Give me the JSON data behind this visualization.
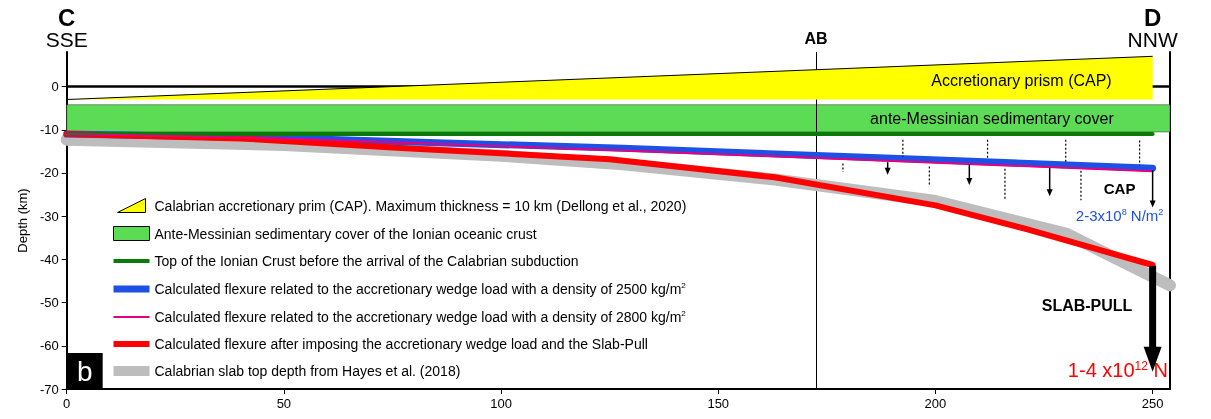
{
  "chart_data": {
    "type": "line",
    "ylabel": "Depth (km)",
    "xlim": [
      0,
      254
    ],
    "xticks": [
      0,
      50,
      100,
      150,
      200,
      250
    ],
    "ylim": [
      -70,
      8
    ],
    "yticks": [
      -70,
      -60,
      -50,
      -40,
      -30,
      -20,
      -10,
      0
    ],
    "tick_labels": "xy",
    "grid": false,
    "legend": "bottom left",
    "marker": "none",
    "line_style": "solid",
    "series": [
      {
        "name": "Calabrian accretionary prim (CAP). Maximum thickness = 10 km (Dellong et al., 2020)",
        "type": "area",
        "color": "#ffff00",
        "x": [
          0,
          250
        ],
        "values": [
          -3,
          7
        ]
      },
      {
        "name": "Top of the Ionian Crust before the arrival of the Calabrian subduction",
        "color": "#0a7a0a",
        "x": [
          0,
          250
        ],
        "values": [
          -11,
          -11
        ]
      },
      {
        "name": "Calculated flexure related to the accretionary wedge load with a density of 2500 kg/m$^{2}$",
        "color": "#1e50e6",
        "x": [
          0,
          50,
          128,
          190,
          250
        ],
        "values": [
          -11,
          -11.9,
          -14.3,
          -16.6,
          -18.9
        ]
      },
      {
        "name": "Calculated flexure related to the accretionary wedge load with a density of 2800 kg/m$^{2}$",
        "color": "#e6007e",
        "x": [
          0,
          50,
          128,
          190,
          250
        ],
        "values": [
          -11,
          -12,
          -14.8,
          -17.2,
          -19.6
        ]
      },
      {
        "name": "Calculated flexure after imposing the accretionary wedge load and the Slab-Pull",
        "color": "#ff0000",
        "x": [
          0,
          40,
          77,
          125,
          163,
          200,
          221,
          250
        ],
        "values": [
          -11,
          -12,
          -14.2,
          -16.8,
          -21,
          -27.5,
          -33,
          -41.3
        ]
      },
      {
        "name": "Calabrian slab top depth from Hayes et al. (2018)",
        "color": "#bdbdbd",
        "x": [
          0,
          50,
          100,
          128,
          163,
          200,
          230,
          254
        ],
        "values": [
          -12.3,
          -13.5,
          -16,
          -18,
          -21.5,
          -26.5,
          -34,
          -46
        ]
      }
    ],
    "ref_lines": [
      {
        "axis": "x",
        "value": 172.5,
        "label": "AB"
      },
      {
        "axis": "y",
        "value": 0,
        "label": null
      }
    ],
    "bands": [
      {
        "axis": "y",
        "from": -10.5,
        "to": -4.2,
        "label": "Ante-Messinian sedimentary cover of the Ionian oceanic crust",
        "color": "#5cdb55"
      }
    ],
    "annotations": [
      "C",
      "SSE",
      "D",
      "NNW",
      "Accretionary prism (CAP)",
      "ante-Messinian sedimentary cover",
      "CAP",
      "2-3x10$^{8}$ N/m$^{2}$",
      "SLAB-PULL",
      "1-4 x10$^{12}$ N",
      "b"
    ]
  }
}
